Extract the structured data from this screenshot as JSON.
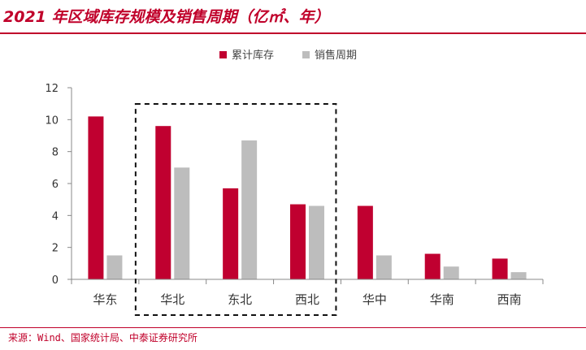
{
  "title": "2021 年区域库存规模及销售周期（亿㎡、年）",
  "source": "来源：Wind、国家统计局、中泰证券研究所",
  "colors": {
    "accent": "#c0002a",
    "inventory": "#c00030",
    "cycle": "#bdbdbd"
  },
  "chart_data": {
    "type": "bar",
    "categories": [
      "华东",
      "华北",
      "东北",
      "西北",
      "华中",
      "华南",
      "西南"
    ],
    "series": [
      {
        "name": "累计库存",
        "values": [
          10.2,
          9.6,
          5.7,
          4.7,
          4.6,
          1.6,
          1.3
        ]
      },
      {
        "name": "销售周期",
        "values": [
          1.5,
          7.0,
          8.7,
          4.6,
          1.5,
          0.8,
          0.45
        ]
      }
    ],
    "ylim": [
      0,
      12
    ],
    "yticks": [
      0,
      2,
      4,
      6,
      8,
      10,
      12
    ],
    "grid": false,
    "legend_position": "top-center",
    "highlight_group": [
      "华北",
      "东北",
      "西北"
    ]
  }
}
